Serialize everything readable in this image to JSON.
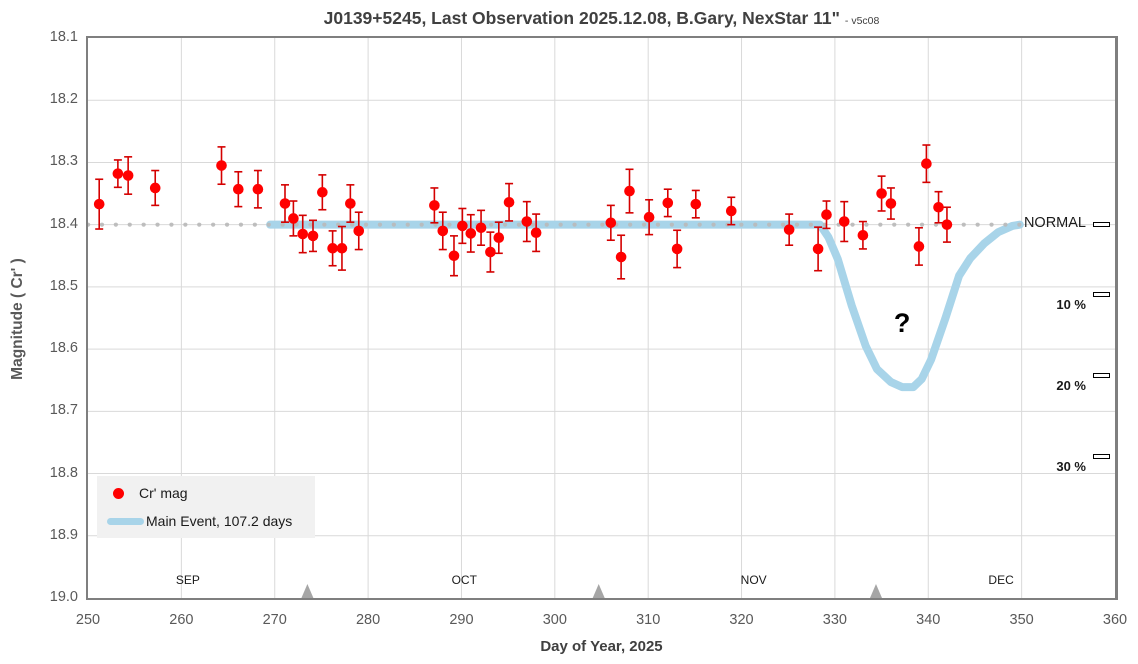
{
  "title": {
    "main": "J0139+5245, Last Observation 2025.12.08, B.Gary, NexStar 11\"",
    "suffix": "- v5c08"
  },
  "axes": {
    "x": {
      "label": "Day of Year, 2025",
      "min": 250,
      "max": 360,
      "ticks": [
        "250",
        "260",
        "270",
        "280",
        "290",
        "300",
        "310",
        "320",
        "330",
        "340",
        "350",
        "360"
      ]
    },
    "y": {
      "label": "Magnitude ( Cr' )",
      "min": 18.1,
      "max": 19.0,
      "inverted": true,
      "ticks": [
        "18.1",
        "18.2",
        "18.3",
        "18.4",
        "18.5",
        "18.6",
        "18.7",
        "18.8",
        "18.9",
        "19.0"
      ]
    }
  },
  "months": [
    {
      "label": "SEP",
      "day": 260.7
    },
    {
      "label": "OCT",
      "day": 290.3
    },
    {
      "label": "NOV",
      "day": 321.3
    },
    {
      "label": "DEC",
      "day": 347.8
    }
  ],
  "month_marker_days": [
    273.5,
    304.7,
    334.4
  ],
  "right_labels": [
    {
      "name": "normal",
      "label": "NORMAL",
      "mag": 18.4,
      "bold": false,
      "dy": -10
    },
    {
      "name": "pct-10",
      "label": "10 %",
      "mag": 18.513,
      "bold": true,
      "dy": 2
    },
    {
      "name": "pct-20",
      "label": "20 %",
      "mag": 18.643,
      "bold": true,
      "dy": 2
    },
    {
      "name": "pct-30",
      "label": "30 %",
      "mag": 18.773,
      "bold": true,
      "dy": 2
    }
  ],
  "annotations": {
    "question_mark": "?",
    "question_mark_pos": {
      "day": 337.2,
      "mag": 18.56
    }
  },
  "legend": {
    "items": [
      {
        "label": "Cr' mag",
        "marker": "dot",
        "color": "#ff0000"
      },
      {
        "label": "Main Event, 107.2 days",
        "marker": "line",
        "color": "#a8d4e9"
      }
    ]
  },
  "colors": {
    "point": "#ff0000",
    "error_bar": "#d40000",
    "main_event": "#a8d4e9",
    "normal_dotted": "#bababa",
    "gridline": "#d9d9d9",
    "plot_border": "#7f7f7f",
    "month_triangle": "#a6a6a6"
  },
  "chart_data": {
    "type": "scatter",
    "title": "J0139+5245, Last Observation 2025.12.08, B.Gary, NexStar 11\"",
    "xlabel": "Day of Year, 2025",
    "ylabel": "Magnitude ( Cr' )",
    "xlim": [
      250,
      360
    ],
    "ylim": [
      18.1,
      19.0
    ],
    "y_inverted": true,
    "grid": true,
    "legend_position": "lower-left",
    "normal_line": {
      "mag": 18.4,
      "x_start": 250,
      "x_end": 349.8,
      "style": "dotted"
    },
    "series": [
      {
        "name": "Cr' mag",
        "type": "scatter-errorbar",
        "points": [
          {
            "day": 251.2,
            "mag": 18.367,
            "err": 0.04
          },
          {
            "day": 253.2,
            "mag": 18.318,
            "err": 0.022
          },
          {
            "day": 254.3,
            "mag": 18.321,
            "err": 0.03
          },
          {
            "day": 257.2,
            "mag": 18.341,
            "err": 0.028
          },
          {
            "day": 264.3,
            "mag": 18.305,
            "err": 0.03
          },
          {
            "day": 266.1,
            "mag": 18.343,
            "err": 0.028
          },
          {
            "day": 268.2,
            "mag": 18.343,
            "err": 0.03
          },
          {
            "day": 271.1,
            "mag": 18.366,
            "err": 0.03
          },
          {
            "day": 272.0,
            "mag": 18.39,
            "err": 0.028
          },
          {
            "day": 273.0,
            "mag": 18.415,
            "err": 0.03
          },
          {
            "day": 274.1,
            "mag": 18.418,
            "err": 0.025
          },
          {
            "day": 275.1,
            "mag": 18.348,
            "err": 0.028
          },
          {
            "day": 276.2,
            "mag": 18.438,
            "err": 0.028
          },
          {
            "day": 277.2,
            "mag": 18.438,
            "err": 0.035
          },
          {
            "day": 278.1,
            "mag": 18.366,
            "err": 0.03
          },
          {
            "day": 279.0,
            "mag": 18.41,
            "err": 0.03
          },
          {
            "day": 287.1,
            "mag": 18.369,
            "err": 0.028
          },
          {
            "day": 288.0,
            "mag": 18.41,
            "err": 0.03
          },
          {
            "day": 289.2,
            "mag": 18.45,
            "err": 0.032
          },
          {
            "day": 290.1,
            "mag": 18.402,
            "err": 0.028
          },
          {
            "day": 291.0,
            "mag": 18.414,
            "err": 0.03
          },
          {
            "day": 292.1,
            "mag": 18.405,
            "err": 0.028
          },
          {
            "day": 293.1,
            "mag": 18.444,
            "err": 0.032
          },
          {
            "day": 294.0,
            "mag": 18.421,
            "err": 0.025
          },
          {
            "day": 295.1,
            "mag": 18.364,
            "err": 0.03
          },
          {
            "day": 297.0,
            "mag": 18.395,
            "err": 0.032
          },
          {
            "day": 298.0,
            "mag": 18.413,
            "err": 0.03
          },
          {
            "day": 306.0,
            "mag": 18.397,
            "err": 0.028
          },
          {
            "day": 307.1,
            "mag": 18.452,
            "err": 0.035
          },
          {
            "day": 308.0,
            "mag": 18.346,
            "err": 0.035
          },
          {
            "day": 310.1,
            "mag": 18.388,
            "err": 0.028
          },
          {
            "day": 312.1,
            "mag": 18.365,
            "err": 0.022
          },
          {
            "day": 313.1,
            "mag": 18.439,
            "err": 0.03
          },
          {
            "day": 315.1,
            "mag": 18.367,
            "err": 0.022
          },
          {
            "day": 318.9,
            "mag": 18.378,
            "err": 0.022
          },
          {
            "day": 325.1,
            "mag": 18.408,
            "err": 0.025
          },
          {
            "day": 328.2,
            "mag": 18.439,
            "err": 0.035
          },
          {
            "day": 329.1,
            "mag": 18.384,
            "err": 0.022
          },
          {
            "day": 331.0,
            "mag": 18.395,
            "err": 0.032
          },
          {
            "day": 333.0,
            "mag": 18.417,
            "err": 0.022
          },
          {
            "day": 335.0,
            "mag": 18.35,
            "err": 0.028
          },
          {
            "day": 336.0,
            "mag": 18.366,
            "err": 0.025
          },
          {
            "day": 339.0,
            "mag": 18.435,
            "err": 0.03
          },
          {
            "day": 339.8,
            "mag": 18.302,
            "err": 0.03
          },
          {
            "day": 341.1,
            "mag": 18.372,
            "err": 0.025
          },
          {
            "day": 342.0,
            "mag": 18.4,
            "err": 0.028
          }
        ]
      },
      {
        "name": "Main Event, 107.2 days",
        "type": "line",
        "points": [
          [
            269.5,
            18.4
          ],
          [
            328.4,
            18.4
          ],
          [
            329.3,
            18.42
          ],
          [
            330.3,
            18.455
          ],
          [
            331.8,
            18.53
          ],
          [
            333.3,
            18.595
          ],
          [
            334.5,
            18.632
          ],
          [
            336.0,
            18.653
          ],
          [
            337.2,
            18.661
          ],
          [
            338.4,
            18.661
          ],
          [
            339.3,
            18.648
          ],
          [
            340.3,
            18.617
          ],
          [
            341.8,
            18.552
          ],
          [
            343.3,
            18.482
          ],
          [
            344.5,
            18.454
          ],
          [
            346.0,
            18.43
          ],
          [
            347.5,
            18.412
          ],
          [
            349.0,
            18.402
          ],
          [
            349.8,
            18.4
          ]
        ]
      }
    ]
  }
}
